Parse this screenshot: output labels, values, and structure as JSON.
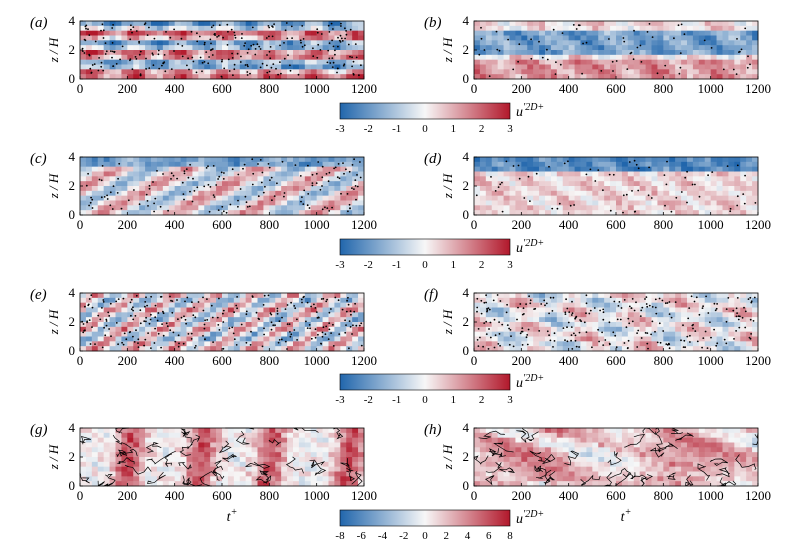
{
  "figure": {
    "panel_labels": [
      "(a)",
      "(b)",
      "(c)",
      "(d)",
      "(e)",
      "(f)",
      "(g)",
      "(h)"
    ],
    "axis_label_y": "z / H",
    "axis_label_x": "t",
    "axis_label_x_sup": "+",
    "colorbar_label": "u",
    "colorbar_label_sup": "′2D+",
    "colors": {
      "negative": "#2166ac",
      "zero": "#f7f7f7",
      "positive": "#b2182b",
      "marker": "#000000"
    }
  },
  "chart_data": [
    {
      "panel": "(a)",
      "type": "heatmap",
      "xlabel": "",
      "ylabel": "z / H",
      "xlim": [
        0,
        1200
      ],
      "ylim": [
        0,
        4
      ],
      "x_ticks": [
        "0",
        "200",
        "400",
        "600",
        "800",
        "1000",
        "1200"
      ],
      "y_ticks": [
        "0",
        "2",
        "4"
      ],
      "pattern": "horizontal streaks",
      "markers": "dense dots",
      "clim": [
        -3,
        3
      ]
    },
    {
      "panel": "(b)",
      "type": "heatmap",
      "xlabel": "",
      "ylabel": "z / H",
      "xlim": [
        0,
        1200
      ],
      "ylim": [
        0,
        4
      ],
      "x_ticks": [
        "0",
        "200",
        "400",
        "600",
        "800",
        "1000",
        "1200"
      ],
      "y_ticks": [
        "0",
        "2",
        "4"
      ],
      "pattern": "negative band near z/H = 2.5, positive near bottom",
      "markers": "sparse dots",
      "clim": [
        -3,
        3
      ]
    },
    {
      "panel": "(c)",
      "type": "heatmap",
      "xlabel": "",
      "ylabel": "z / H",
      "xlim": [
        0,
        1200
      ],
      "ylim": [
        0,
        4
      ],
      "x_ticks": [
        "0",
        "200",
        "400",
        "600",
        "800",
        "1000",
        "1200"
      ],
      "y_ticks": [
        "0",
        "2",
        "4"
      ],
      "pattern": "inclined positive streaks, negative band near top",
      "markers": "medium dots",
      "clim": [
        -3,
        3
      ]
    },
    {
      "panel": "(d)",
      "type": "heatmap",
      "xlabel": "",
      "ylabel": "z / H",
      "xlim": [
        0,
        1200
      ],
      "ylim": [
        0,
        4
      ],
      "x_ticks": [
        "0",
        "200",
        "400",
        "600",
        "800",
        "1000",
        "1200"
      ],
      "y_ticks": [
        "0",
        "2",
        "4"
      ],
      "pattern": "negative band near z/H = 3.5, weak positive below",
      "markers": "sparse dots",
      "clim": [
        -3,
        3
      ]
    },
    {
      "panel": "(e)",
      "type": "heatmap",
      "xlabel": "",
      "ylabel": "z / H",
      "xlim": [
        0,
        1200
      ],
      "ylim": [
        0,
        4
      ],
      "x_ticks": [
        "0",
        "200",
        "400",
        "600",
        "800",
        "1000",
        "1200"
      ],
      "y_ticks": [
        "0",
        "2",
        "4"
      ],
      "pattern": "inclined streaks",
      "markers": "very dense dots",
      "clim": [
        -3,
        3
      ]
    },
    {
      "panel": "(f)",
      "type": "heatmap",
      "xlabel": "",
      "ylabel": "z / H",
      "xlim": [
        0,
        1200
      ],
      "ylim": [
        0,
        4
      ],
      "x_ticks": [
        "0",
        "200",
        "400",
        "600",
        "800",
        "1000",
        "1200"
      ],
      "y_ticks": [
        "0",
        "2",
        "4"
      ],
      "pattern": "mixed patches",
      "markers": "dense dots",
      "clim": [
        -3,
        3
      ]
    },
    {
      "panel": "(g)",
      "type": "heatmap",
      "xlabel": "t+",
      "ylabel": "z / H",
      "xlim": [
        0,
        1200
      ],
      "ylim": [
        0,
        4
      ],
      "x_ticks": [
        "0",
        "200",
        "400",
        "600",
        "800",
        "1000",
        "1200"
      ],
      "y_ticks": [
        "0",
        "2",
        "4"
      ],
      "pattern": "vertical positive bands near t+ = 200, 500, 800, 1150",
      "markers": "contours",
      "clim": [
        -8,
        8
      ]
    },
    {
      "panel": "(h)",
      "type": "heatmap",
      "xlabel": "t+",
      "ylabel": "z / H",
      "xlim": [
        0,
        1200
      ],
      "ylim": [
        0,
        4
      ],
      "x_ticks": [
        "0",
        "200",
        "400",
        "600",
        "800",
        "1000",
        "1200"
      ],
      "y_ticks": [
        "0",
        "2",
        "4"
      ],
      "pattern": "large patches",
      "markers": "contours",
      "clim": [
        -8,
        8
      ]
    },
    {
      "type": "colorbar",
      "label": "u′2D+",
      "range": [
        -3,
        3
      ],
      "ticks": [
        "-3",
        "-2",
        "-1",
        "0",
        "1",
        "2",
        "3"
      ]
    },
    {
      "type": "colorbar",
      "label": "u′2D+",
      "range": [
        -3,
        3
      ],
      "ticks": [
        "-3",
        "-2",
        "-1",
        "0",
        "1",
        "2",
        "3"
      ]
    },
    {
      "type": "colorbar",
      "label": "u′2D+",
      "range": [
        -3,
        3
      ],
      "ticks": [
        "-3",
        "-2",
        "-1",
        "0",
        "1",
        "2",
        "3"
      ]
    },
    {
      "type": "colorbar",
      "label": "u′2D+",
      "range": [
        -8,
        8
      ],
      "ticks": [
        "-8",
        "-6",
        "-4",
        "-2",
        "0",
        "2",
        "4",
        "6",
        "8"
      ]
    }
  ]
}
